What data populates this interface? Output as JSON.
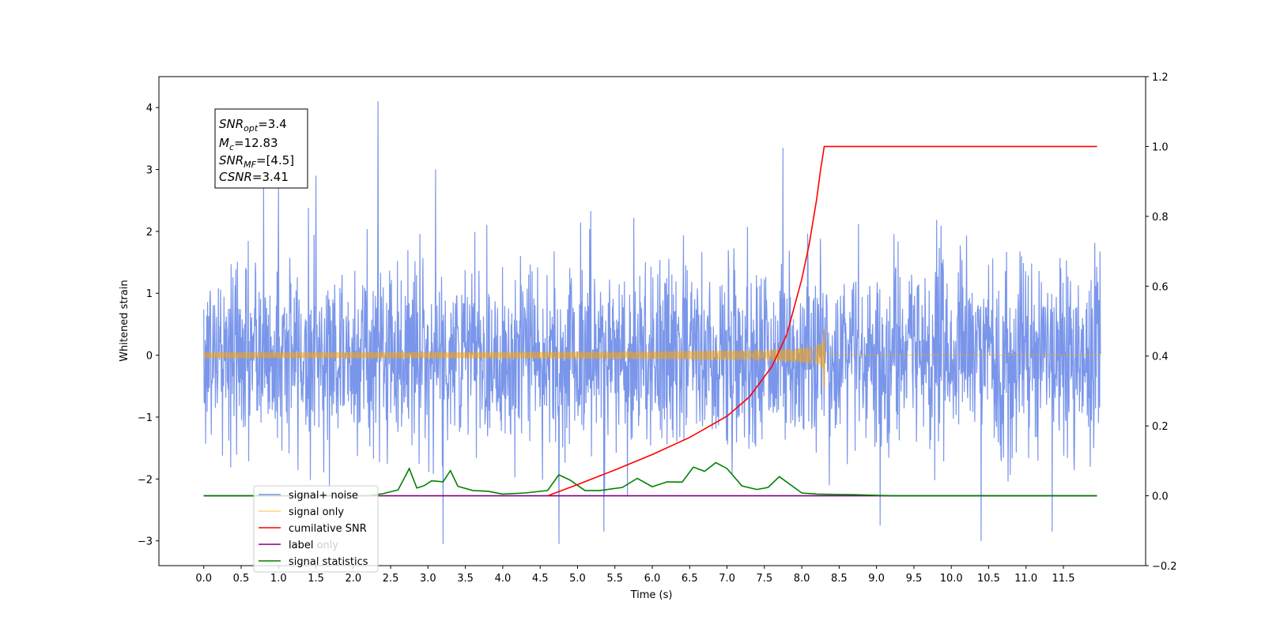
{
  "chart_data": {
    "type": "line",
    "xlabel": "Time (s)",
    "ylabel": "Whitened strain",
    "xlim": [
      -0.6,
      12.6
    ],
    "ylim": [
      -3.4,
      4.5
    ],
    "y2lim": [
      -0.2,
      1.2
    ],
    "x_ticks": [
      0.0,
      0.5,
      1.0,
      1.5,
      2.0,
      2.5,
      3.0,
      3.5,
      4.0,
      4.5,
      5.0,
      5.5,
      6.0,
      6.5,
      7.0,
      7.5,
      8.0,
      8.5,
      9.0,
      9.5,
      10.0,
      10.5,
      11.0,
      11.5
    ],
    "x_tick_labels": [
      "0.0",
      "0.5",
      "1.0",
      "1.5",
      "2.0",
      "2.5",
      "3.0",
      "3.5",
      "4.0",
      "4.5",
      "5.0",
      "5.5",
      "6.0",
      "6.5",
      "7.0",
      "7.5",
      "8.0",
      "8.5",
      "9.0",
      "9.5",
      "10.0",
      "10.5",
      "11.0",
      "11.5"
    ],
    "y_ticks": [
      -3,
      -2,
      -1,
      0,
      1,
      2,
      3,
      4
    ],
    "y_tick_labels": [
      "−3",
      "−2",
      "−1",
      "0",
      "1",
      "2",
      "3",
      "4"
    ],
    "y2_ticks": [
      -0.2,
      0.0,
      0.2,
      0.4,
      0.6,
      0.8,
      1.0,
      1.2
    ],
    "y2_tick_labels": [
      "−0.2",
      "0.0",
      "0.2",
      "0.4",
      "0.6",
      "0.8",
      "1.0",
      "1.2"
    ],
    "grid": false,
    "legend_position": "bottom-left",
    "annotation": {
      "lines": [
        {
          "base": "SNR",
          "sub": "opt",
          "rest": "=3.4"
        },
        {
          "base": "M",
          "sub": "c",
          "rest": "=12.83"
        },
        {
          "base": "SNR",
          "sub": "MF",
          "rest": "=[4.5]"
        },
        {
          "base": "CSNR",
          "sub": "",
          "rest": "=3.41"
        }
      ]
    },
    "series": [
      {
        "name": "signal+ noise",
        "axis": "left",
        "color": "#4169e1",
        "x_range": [
          0.0,
          12.0
        ],
        "noise_sigma": 0.75,
        "noise_peak_points": [
          [
            0.8,
            2.7
          ],
          [
            1.0,
            2.7
          ],
          [
            1.5,
            2.9
          ],
          [
            2.33,
            4.1
          ],
          [
            3.1,
            3.0
          ],
          [
            3.2,
            -3.05
          ],
          [
            4.75,
            -3.05
          ],
          [
            5.35,
            -2.85
          ],
          [
            7.75,
            3.35
          ],
          [
            9.05,
            -2.75
          ],
          [
            10.4,
            -3.0
          ],
          [
            11.35,
            -2.85
          ]
        ]
      },
      {
        "name": "signal only",
        "axis": "left",
        "color": "#ffa500",
        "chirp_merger_time": 8.3,
        "envelope_peak": 0.4,
        "peak_min": -0.52
      },
      {
        "name": "cumilative SNR",
        "axis": "right",
        "color": "#ff0000",
        "x": [
          4.6,
          5.0,
          5.5,
          6.0,
          6.5,
          7.0,
          7.3,
          7.6,
          7.8,
          8.0,
          8.1,
          8.2,
          8.25,
          8.3,
          11.95
        ],
        "y": [
          0.0,
          0.032,
          0.074,
          0.118,
          0.167,
          0.228,
          0.283,
          0.37,
          0.462,
          0.62,
          0.72,
          0.85,
          0.93,
          1.0,
          1.0
        ]
      },
      {
        "name": "label",
        "axis": "right",
        "color": "#800080",
        "x": [
          0.0,
          11.95
        ],
        "y": [
          0.0,
          0.0
        ]
      },
      {
        "name": "label only",
        "axis": "right",
        "color": "#d0d0d0",
        "x": [],
        "y": []
      },
      {
        "name": "signal statistics",
        "axis": "right",
        "color": "#008000",
        "x": [
          0.0,
          2.2,
          2.4,
          2.6,
          2.75,
          2.85,
          2.95,
          3.05,
          3.2,
          3.3,
          3.4,
          3.6,
          3.8,
          4.0,
          4.3,
          4.6,
          4.75,
          4.9,
          5.1,
          5.3,
          5.6,
          5.8,
          6.0,
          6.2,
          6.4,
          6.55,
          6.7,
          6.85,
          7.0,
          7.2,
          7.4,
          7.55,
          7.7,
          8.0,
          8.2,
          8.4,
          8.7,
          9.2,
          11.95
        ],
        "y": [
          0.0,
          0.0,
          0.006,
          0.017,
          0.078,
          0.022,
          0.029,
          0.043,
          0.04,
          0.072,
          0.027,
          0.015,
          0.013,
          0.005,
          0.008,
          0.015,
          0.06,
          0.045,
          0.015,
          0.015,
          0.024,
          0.05,
          0.026,
          0.04,
          0.039,
          0.082,
          0.07,
          0.095,
          0.078,
          0.028,
          0.018,
          0.024,
          0.055,
          0.008,
          0.005,
          0.004,
          0.003,
          0.0,
          0.0
        ]
      }
    ]
  }
}
